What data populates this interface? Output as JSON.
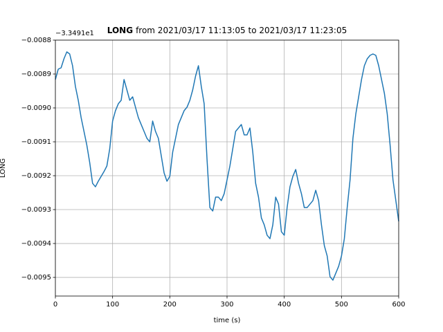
{
  "chart_data": {
    "type": "line",
    "title_emphasis": "LONG",
    "title": "from 2021/03/17 11:13:05 to 2021/03/17 11:23:05",
    "offset_text": "−3.3491e1",
    "y_label": "LONG",
    "x_label": "time (s)",
    "grid": true,
    "xlim": [
      0,
      600
    ],
    "xticks": [
      0,
      100,
      200,
      300,
      400,
      500,
      600
    ],
    "ylim": [
      -0.009555,
      -0.0088
    ],
    "yticks": [
      {
        "value": -0.0088,
        "label": "−0.0088"
      },
      {
        "value": -0.0089,
        "label": "−0.0089"
      },
      {
        "value": -0.009,
        "label": "−0.0090"
      },
      {
        "value": -0.0091,
        "label": "−0.0091"
      },
      {
        "value": -0.0092,
        "label": "−0.0092"
      },
      {
        "value": -0.0093,
        "label": "−0.0093"
      },
      {
        "value": -0.0094,
        "label": "−0.0094"
      },
      {
        "value": -0.0095,
        "label": "−0.0095"
      }
    ],
    "x": [
      0,
      5,
      10,
      15,
      20,
      25,
      30,
      35,
      40,
      45,
      50,
      55,
      60,
      65,
      70,
      75,
      80,
      85,
      90,
      95,
      100,
      105,
      110,
      115,
      120,
      125,
      130,
      135,
      140,
      145,
      150,
      155,
      160,
      165,
      170,
      175,
      180,
      185,
      190,
      195,
      200,
      205,
      210,
      215,
      220,
      225,
      230,
      235,
      240,
      245,
      250,
      255,
      260,
      265,
      270,
      275,
      280,
      285,
      290,
      295,
      300,
      305,
      310,
      315,
      320,
      325,
      330,
      335,
      340,
      345,
      350,
      355,
      360,
      365,
      370,
      375,
      380,
      385,
      390,
      395,
      400,
      405,
      410,
      415,
      420,
      425,
      430,
      435,
      440,
      445,
      450,
      455,
      460,
      465,
      470,
      475,
      480,
      485,
      490,
      495,
      500,
      505,
      510,
      515,
      520,
      525,
      530,
      535,
      540,
      545,
      550,
      555,
      560,
      565,
      570,
      575,
      580,
      585,
      590,
      595,
      600
    ],
    "series": [
      {
        "color": "#1f77b4",
        "values": [
          -0.0089163,
          -0.0088857,
          -0.0088816,
          -0.0088551,
          -0.0088347,
          -0.0088408,
          -0.0088755,
          -0.0089367,
          -0.0089776,
          -0.0090286,
          -0.0090694,
          -0.0091102,
          -0.0091612,
          -0.0092225,
          -0.0092327,
          -0.0092163,
          -0.009202,
          -0.0091878,
          -0.0091714,
          -0.0091204,
          -0.0090388,
          -0.0090082,
          -0.0089878,
          -0.0089776,
          -0.0089163,
          -0.0089469,
          -0.0089776,
          -0.0089673,
          -0.008998,
          -0.0090286,
          -0.009049,
          -0.0090694,
          -0.0090898,
          -0.0091,
          -0.0090388,
          -0.0090694,
          -0.0090898,
          -0.0091408,
          -0.0091918,
          -0.0092163,
          -0.009202,
          -0.0091306,
          -0.0090898,
          -0.009049,
          -0.0090286,
          -0.0090082,
          -0.008998,
          -0.0089776,
          -0.0089469,
          -0.0089061,
          -0.0088755,
          -0.0089367,
          -0.0089878,
          -0.009151,
          -0.0092939,
          -0.0093041,
          -0.0092633,
          -0.0092633,
          -0.0092735,
          -0.0092531,
          -0.0092123,
          -0.0091714,
          -0.0091204,
          -0.0090694,
          -0.0090592,
          -0.009049,
          -0.0090796,
          -0.0090796,
          -0.0090592,
          -0.0091306,
          -0.0092225,
          -0.0092633,
          -0.0093245,
          -0.0093449,
          -0.0093756,
          -0.0093858,
          -0.0093449,
          -0.0092633,
          -0.0092837,
          -0.0093654,
          -0.0093756,
          -0.0092939,
          -0.0092327,
          -0.009202,
          -0.0091817,
          -0.0092225,
          -0.0092531,
          -0.0092939,
          -0.0092939,
          -0.0092837,
          -0.0092735,
          -0.0092429,
          -0.0092735,
          -0.0093449,
          -0.0094062,
          -0.0094368,
          -0.009498,
          -0.0095082,
          -0.0094878,
          -0.0094674,
          -0.0094368,
          -0.0093858,
          -0.0092939,
          -0.0092123,
          -0.0090898,
          -0.0090184,
          -0.0089673,
          -0.0089163,
          -0.0088755,
          -0.0088551,
          -0.0088449,
          -0.0088408,
          -0.0088449,
          -0.0088755,
          -0.0089163,
          -0.0089572,
          -0.0090184,
          -0.0091102,
          -0.0092123,
          -0.0092735,
          -0.0093347
        ]
      }
    ]
  }
}
